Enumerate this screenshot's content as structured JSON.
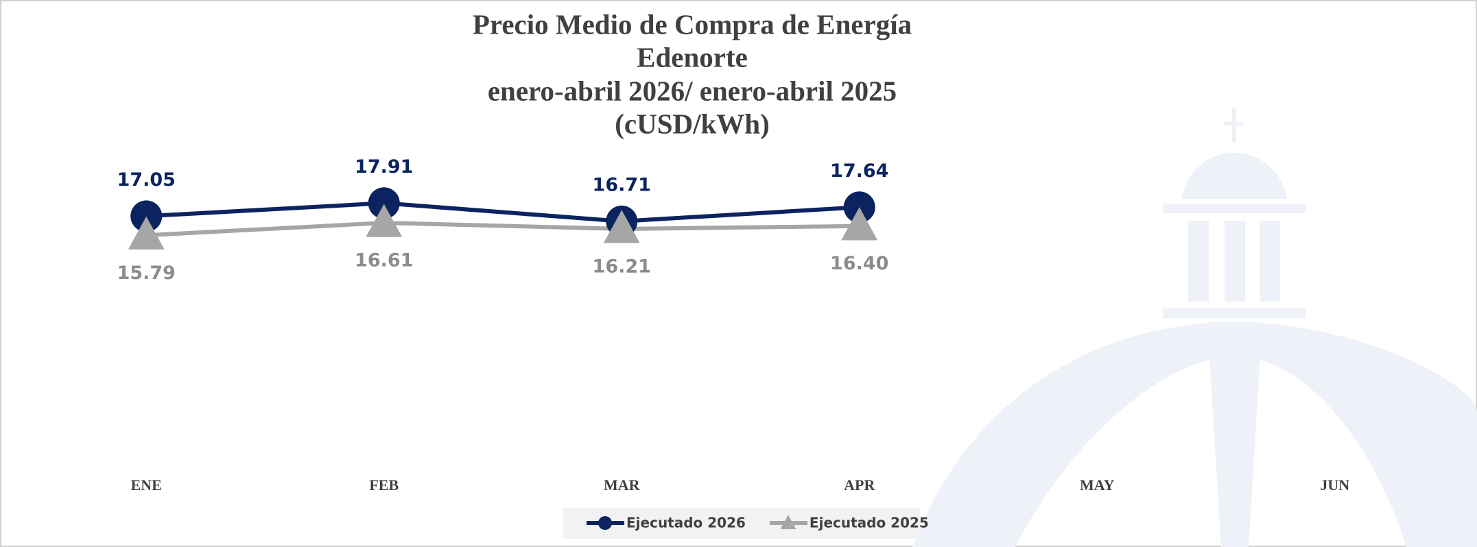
{
  "chart_data": {
    "type": "line",
    "title": [
      "Precio Medio de Compra de Energía",
      "Edenorte",
      "enero-abril 2026/ enero-abril 2025",
      "(cUSD/kWh)"
    ],
    "categories": [
      "ENE",
      "FEB",
      "MAR",
      "APR",
      "MAY",
      "JUN"
    ],
    "series": [
      {
        "name": "Ejecutado 2026",
        "color": "#0b2460",
        "label_color": "#0b2460",
        "marker": "circle",
        "values": [
          17.05,
          17.91,
          16.71,
          17.64,
          null,
          null
        ]
      },
      {
        "name": "Ejecutado 2025",
        "color": "#a6a6a6",
        "label_color": "#8c8c8c",
        "marker": "triangle",
        "values": [
          15.79,
          16.61,
          16.21,
          16.4,
          null,
          null
        ],
        "value_labels": [
          "15.79",
          "16.61",
          "16.21",
          "16.40",
          null,
          null
        ]
      }
    ],
    "ylim": [
      0,
      20
    ],
    "grid": false,
    "legend": "bottom"
  }
}
